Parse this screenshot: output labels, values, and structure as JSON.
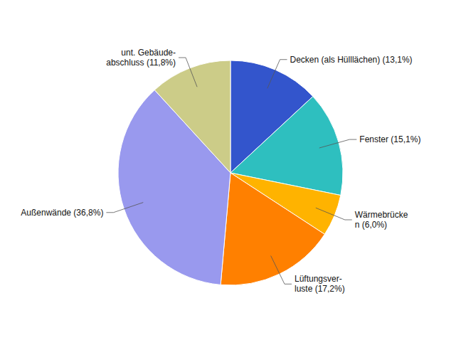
{
  "chart_data": {
    "type": "pie",
    "categories": [
      "Decken (als Hülllächen) (13,1%)",
      "Fenster (15,1%)",
      "Wärmebrücke\nn (6,0%)",
      "Lüftungsver-\nluste (17,2%)",
      "Außenwände (36,8%)",
      "unt. Gebäude-\nabschluss (11,8%)"
    ],
    "values": [
      13.1,
      15.1,
      6.0,
      17.2,
      36.8,
      11.8
    ],
    "colors": [
      "#3355cc",
      "#2ebfbf",
      "#ffb300",
      "#ff8000",
      "#9999ee",
      "#cccc88"
    ]
  }
}
